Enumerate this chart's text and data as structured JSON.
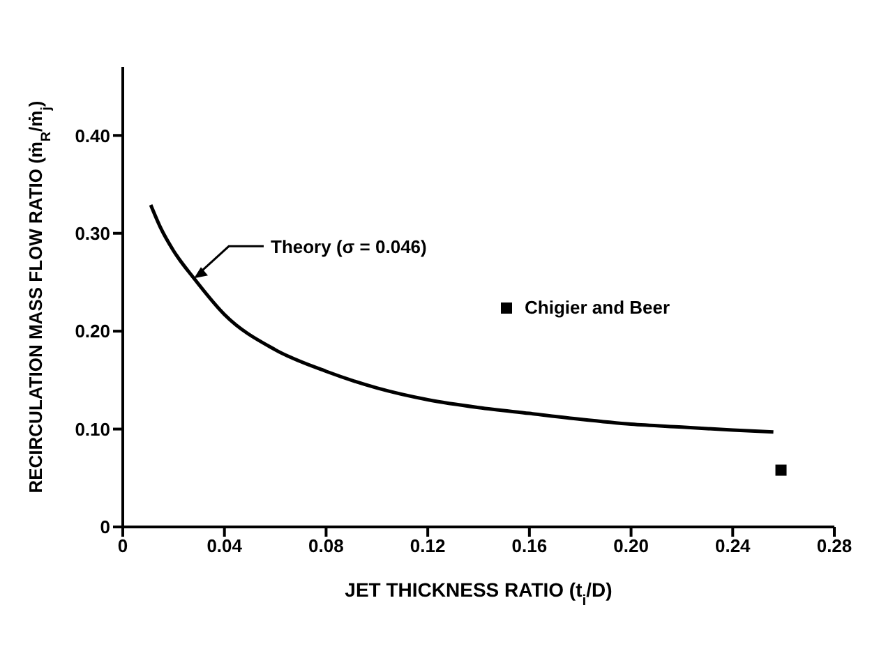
{
  "chart_data": {
    "type": "line",
    "xlabel": "JET THICKNESS RATIO (t$_{i}$/D)",
    "ylabel": "RECIRCULATION MASS FLOW RATIO (ṁ$_{R}$/ṁ$_{j}$)",
    "xlim": [
      0,
      0.28
    ],
    "xticks": [
      0,
      0.04,
      0.08,
      0.12,
      0.16,
      {
        "value": 0.2,
        "label": "0.20"
      },
      0.24,
      0.28
    ],
    "ylim": [
      0,
      0.47
    ],
    "yticks": [
      0,
      {
        "value": 0.1,
        "label": "0.10"
      },
      {
        "value": 0.2,
        "label": "0.20"
      },
      {
        "value": 0.3,
        "label": "0.30"
      },
      {
        "value": 0.4,
        "label": "0.40"
      }
    ],
    "legend": "right",
    "annotations": [
      {
        "text": "Theory (σ = 0.046)",
        "x": 0.028,
        "y": 0.254
      }
    ],
    "series": [
      {
        "color": "#000000",
        "marker": "none",
        "line_style": "solid",
        "x": [
          0.011,
          0.015,
          0.02,
          0.028,
          0.04,
          0.06,
          0.08,
          0.1,
          0.12,
          0.14,
          0.16,
          0.18,
          0.2,
          0.22,
          0.24,
          0.256
        ],
        "values": [
          0.329,
          0.305,
          0.282,
          0.254,
          0.217,
          0.181,
          0.159,
          0.142,
          0.13,
          0.122,
          0.116,
          0.11,
          0.105,
          0.102,
          0.099,
          0.097
        ]
      },
      {
        "type": "scatter",
        "name": "Chigier and Beer",
        "color": "#000000",
        "marker": "square",
        "x": [
          0.259
        ],
        "values": [
          0.058
        ]
      }
    ]
  }
}
